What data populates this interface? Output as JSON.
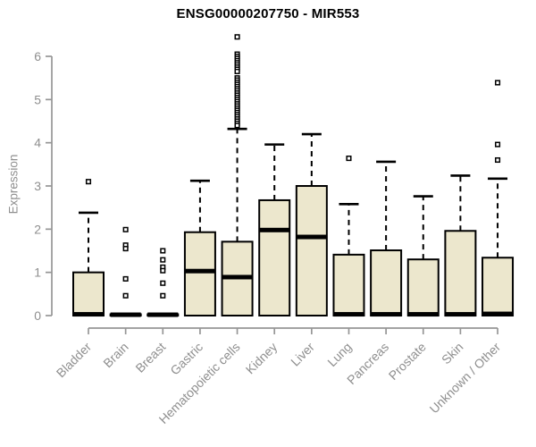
{
  "colors": {
    "box_fill": "#ece7cd",
    "box_border": "#000000",
    "median": "#000000",
    "whisker": "#000000",
    "outlier_stroke": "#000000",
    "outlier_fill": "#ffffff",
    "axis_line": "#969696",
    "axis_text": "#8f8f8f",
    "title_text": "#000000",
    "background": "#ffffff"
  },
  "chart_data": {
    "type": "boxplot",
    "title": "ENSG00000207750 - MIR553",
    "xlabel": "",
    "ylabel": "Expression",
    "ylim": [
      0,
      6
    ],
    "yticks": [
      0,
      1,
      2,
      3,
      4,
      5,
      6
    ],
    "grid": false,
    "legend": null,
    "categories": [
      "Bladder",
      "Brain",
      "Breast",
      "Gastric",
      "Hematopoietic cells",
      "Kidney",
      "Liver",
      "Lung",
      "Pancreas",
      "Prostate",
      "Skin",
      "Unknown / Other"
    ],
    "series": [
      {
        "name": "Bladder",
        "whisker_low": 0,
        "q1": 0,
        "median": 0.03,
        "q3": 1.0,
        "whisker_high": 2.38,
        "outliers": [
          3.1
        ]
      },
      {
        "name": "Brain",
        "whisker_low": 0,
        "q1": 0,
        "median": 0.02,
        "q3": 0.03,
        "whisker_high": 0.03,
        "outliers": [
          1.99,
          1.63,
          1.55,
          0.85,
          0.46
        ]
      },
      {
        "name": "Breast",
        "whisker_low": 0,
        "q1": 0,
        "median": 0.02,
        "q3": 0.03,
        "whisker_high": 0.03,
        "outliers": [
          1.5,
          1.29,
          1.12,
          1.04,
          0.75,
          0.46
        ]
      },
      {
        "name": "Gastric",
        "whisker_low": 0,
        "q1": 0,
        "median": 1.03,
        "q3": 1.93,
        "whisker_high": 3.12,
        "outliers": []
      },
      {
        "name": "Hematopoietic cells",
        "whisker_low": 0,
        "q1": 0,
        "median": 0.89,
        "q3": 1.71,
        "whisker_high": 4.32,
        "outliers": [
          6.45,
          6.05,
          6.0,
          5.95,
          5.9,
          5.85,
          5.8,
          5.75,
          5.7,
          5.65,
          5.5,
          5.45,
          5.4,
          5.35,
          5.3,
          5.25,
          5.2,
          5.15,
          5.1,
          5.05,
          5.0,
          4.95,
          4.9,
          4.85,
          4.8,
          4.75,
          4.7,
          4.65,
          4.6,
          4.55,
          4.5,
          4.45,
          4.4
        ]
      },
      {
        "name": "Kidney",
        "whisker_low": 0,
        "q1": 0,
        "median": 1.98,
        "q3": 2.67,
        "whisker_high": 3.96,
        "outliers": []
      },
      {
        "name": "Liver",
        "whisker_low": 0,
        "q1": 0,
        "median": 1.82,
        "q3": 3.0,
        "whisker_high": 4.2,
        "outliers": []
      },
      {
        "name": "Lung",
        "whisker_low": 0,
        "q1": 0,
        "median": 0.03,
        "q3": 1.41,
        "whisker_high": 2.58,
        "outliers": [
          3.64
        ]
      },
      {
        "name": "Pancreas",
        "whisker_low": 0,
        "q1": 0,
        "median": 0.03,
        "q3": 1.51,
        "whisker_high": 3.56,
        "outliers": []
      },
      {
        "name": "Prostate",
        "whisker_low": 0,
        "q1": 0,
        "median": 0.03,
        "q3": 1.3,
        "whisker_high": 2.76,
        "outliers": []
      },
      {
        "name": "Skin",
        "whisker_low": 0,
        "q1": 0,
        "median": 0.03,
        "q3": 1.96,
        "whisker_high": 3.24,
        "outliers": []
      },
      {
        "name": "Unknown / Other",
        "whisker_low": 0,
        "q1": 0,
        "median": 0.04,
        "q3": 1.34,
        "whisker_high": 3.17,
        "outliers": [
          5.39,
          3.96,
          3.6
        ]
      }
    ]
  }
}
